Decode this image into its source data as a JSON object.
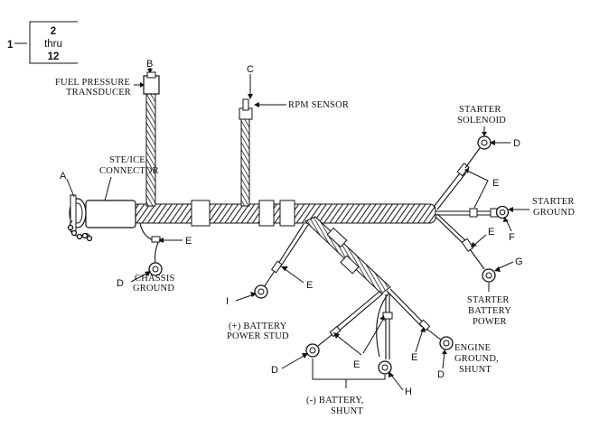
{
  "ref_box": {
    "index": "1",
    "line1": "2",
    "line2": "thru",
    "line3": "12"
  },
  "letters": {
    "A": "A",
    "B": "B",
    "C": "C",
    "D": "D",
    "E": "E",
    "F": "F",
    "G": "G",
    "H": "H",
    "I": "I"
  },
  "labels": {
    "fuel_pressure_1": "FUEL PRESSURE",
    "fuel_pressure_2": "TRANSDUCER",
    "rpm_sensor": "RPM SENSOR",
    "ste_ice_1": "STE/ICE",
    "ste_ice_2": "CONNECTOR",
    "chassis_1": "CHASSIS",
    "chassis_2": "GROUND",
    "battery_stud_1": "(+) BATTERY",
    "battery_stud_2": "POWER STUD",
    "neg_battery_1": "(-) BATTERY,",
    "neg_battery_2": "SHUNT",
    "engine_ground_1": "ENGINE",
    "engine_ground_2": "GROUND,",
    "engine_ground_3": "SHUNT",
    "starter_solenoid_1": "STARTER",
    "starter_solenoid_2": "SOLENOID",
    "starter_ground_1": "STARTER",
    "starter_ground_2": "GROUND",
    "starter_battery_1": "STARTER",
    "starter_battery_2": "BATTERY",
    "starter_battery_3": "POWER"
  }
}
